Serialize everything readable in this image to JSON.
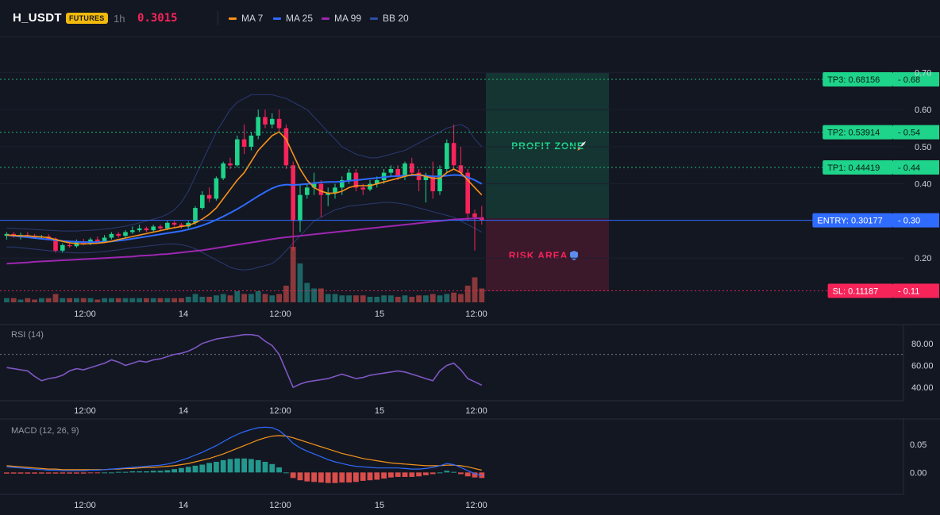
{
  "header": {
    "symbol": "H_USDT",
    "badge": "FUTURES",
    "timeframe": "1h",
    "last_price": "0.3015",
    "legend": [
      {
        "label": "MA 7",
        "color": "#f7931a"
      },
      {
        "label": "MA 25",
        "color": "#2f6bff"
      },
      {
        "label": "MA 99",
        "color": "#9c27b0"
      },
      {
        "label": "BB 20",
        "color": "#1e3a8a"
      }
    ]
  },
  "colors": {
    "up": "#1ed38a",
    "down": "#f7245a",
    "up_muted": "#26a69a",
    "down_muted": "#ef5350",
    "ma7": "#f7931a",
    "ma25": "#2f6bff",
    "ma99": "#9c27b0",
    "bb": "#2b3a72",
    "rsi": "#7e57c2",
    "macd": "#2f6bff",
    "signal": "#f7931a",
    "tp": "#1ed38a",
    "entry": "#2f6bff",
    "sl": "#f7245a"
  },
  "price_axis": {
    "ticks": [
      "0.70",
      "0.60",
      "0.50",
      "0.40",
      "0.20"
    ],
    "ylim": [
      0.1,
      0.72
    ]
  },
  "time_axis": {
    "ticks": [
      "12:00",
      "14",
      "12:00",
      "15",
      "12:00"
    ]
  },
  "levels": [
    {
      "label": "TP3: 0.68156",
      "short": "0.68",
      "value": 0.68156,
      "kind": "tp"
    },
    {
      "label": "TP2: 0.53914",
      "short": "0.54",
      "value": 0.53914,
      "kind": "tp"
    },
    {
      "label": "TP1: 0.44419",
      "short": "0.44",
      "value": 0.44419,
      "kind": "tp"
    },
    {
      "label": "ENTRY: 0.30177",
      "short": "0.30",
      "value": 0.30177,
      "kind": "entry"
    },
    {
      "label": "SL: 0.11187",
      "short": "0.11",
      "value": 0.11187,
      "kind": "sl"
    }
  ],
  "zones": {
    "profit_label": "PROFIT ZONE",
    "profit_icon": "rocket-icon",
    "risk_label": "RISK AREA",
    "risk_icon": "shield-icon"
  },
  "rsi": {
    "title": "RSI (14)",
    "ticks": [
      "80.00",
      "60.00",
      "40.00"
    ],
    "ylim": [
      30,
      95
    ],
    "overbought": 70
  },
  "macd": {
    "title": "MACD (12, 26, 9)",
    "ticks": [
      "0.05",
      "0.00"
    ],
    "ylim": [
      -0.035,
      0.09
    ]
  },
  "chart_data": {
    "type": "candlestick",
    "title": "H_USDT",
    "candles": [
      [
        0.26,
        0.27,
        0.25,
        0.265
      ],
      [
        0.265,
        0.27,
        0.255,
        0.258
      ],
      [
        0.258,
        0.268,
        0.25,
        0.262
      ],
      [
        0.262,
        0.27,
        0.255,
        0.26
      ],
      [
        0.26,
        0.265,
        0.252,
        0.255
      ],
      [
        0.255,
        0.262,
        0.25,
        0.258
      ],
      [
        0.258,
        0.264,
        0.25,
        0.252
      ],
      [
        0.252,
        0.256,
        0.215,
        0.22
      ],
      [
        0.22,
        0.24,
        0.215,
        0.235
      ],
      [
        0.235,
        0.245,
        0.228,
        0.232
      ],
      [
        0.232,
        0.25,
        0.228,
        0.245
      ],
      [
        0.245,
        0.252,
        0.235,
        0.24
      ],
      [
        0.24,
        0.255,
        0.235,
        0.25
      ],
      [
        0.25,
        0.258,
        0.242,
        0.245
      ],
      [
        0.245,
        0.262,
        0.24,
        0.255
      ],
      [
        0.255,
        0.27,
        0.25,
        0.265
      ],
      [
        0.265,
        0.27,
        0.255,
        0.26
      ],
      [
        0.26,
        0.275,
        0.255,
        0.27
      ],
      [
        0.27,
        0.285,
        0.265,
        0.275
      ],
      [
        0.275,
        0.29,
        0.27,
        0.28
      ],
      [
        0.28,
        0.285,
        0.27,
        0.275
      ],
      [
        0.275,
        0.29,
        0.27,
        0.285
      ],
      [
        0.285,
        0.29,
        0.275,
        0.28
      ],
      [
        0.28,
        0.3,
        0.275,
        0.295
      ],
      [
        0.295,
        0.3,
        0.285,
        0.29
      ],
      [
        0.29,
        0.295,
        0.28,
        0.285
      ],
      [
        0.285,
        0.3,
        0.28,
        0.295
      ],
      [
        0.295,
        0.34,
        0.29,
        0.335
      ],
      [
        0.335,
        0.38,
        0.33,
        0.37
      ],
      [
        0.37,
        0.39,
        0.35,
        0.36
      ],
      [
        0.36,
        0.42,
        0.355,
        0.415
      ],
      [
        0.415,
        0.46,
        0.41,
        0.455
      ],
      [
        0.455,
        0.47,
        0.44,
        0.45
      ],
      [
        0.45,
        0.53,
        0.445,
        0.52
      ],
      [
        0.52,
        0.56,
        0.48,
        0.5
      ],
      [
        0.5,
        0.54,
        0.49,
        0.53
      ],
      [
        0.53,
        0.6,
        0.52,
        0.58
      ],
      [
        0.58,
        0.6,
        0.55,
        0.56
      ],
      [
        0.56,
        0.59,
        0.55,
        0.575
      ],
      [
        0.575,
        0.6,
        0.54,
        0.55
      ],
      [
        0.55,
        0.56,
        0.44,
        0.45
      ],
      [
        0.45,
        0.46,
        0.22,
        0.3
      ],
      [
        0.3,
        0.4,
        0.27,
        0.37
      ],
      [
        0.37,
        0.4,
        0.36,
        0.39
      ],
      [
        0.39,
        0.43,
        0.37,
        0.4
      ],
      [
        0.4,
        0.41,
        0.31,
        0.37
      ],
      [
        0.37,
        0.39,
        0.34,
        0.375
      ],
      [
        0.375,
        0.4,
        0.36,
        0.39
      ],
      [
        0.39,
        0.42,
        0.37,
        0.41
      ],
      [
        0.41,
        0.44,
        0.4,
        0.43
      ],
      [
        0.43,
        0.44,
        0.38,
        0.39
      ],
      [
        0.39,
        0.4,
        0.37,
        0.385
      ],
      [
        0.385,
        0.41,
        0.38,
        0.4
      ],
      [
        0.4,
        0.42,
        0.39,
        0.41
      ],
      [
        0.41,
        0.44,
        0.4,
        0.43
      ],
      [
        0.43,
        0.45,
        0.42,
        0.44
      ],
      [
        0.44,
        0.45,
        0.41,
        0.42
      ],
      [
        0.42,
        0.46,
        0.41,
        0.455
      ],
      [
        0.455,
        0.47,
        0.42,
        0.43
      ],
      [
        0.43,
        0.44,
        0.38,
        0.41
      ],
      [
        0.41,
        0.43,
        0.35,
        0.42
      ],
      [
        0.42,
        0.46,
        0.36,
        0.38
      ],
      [
        0.38,
        0.45,
        0.37,
        0.44
      ],
      [
        0.44,
        0.52,
        0.43,
        0.51
      ],
      [
        0.51,
        0.56,
        0.44,
        0.45
      ],
      [
        0.45,
        0.5,
        0.42,
        0.43
      ],
      [
        0.43,
        0.44,
        0.3,
        0.32
      ],
      [
        0.32,
        0.33,
        0.22,
        0.31
      ],
      [
        0.31,
        0.34,
        0.29,
        0.3015
      ]
    ],
    "volume": [
      3,
      3,
      2,
      3,
      2,
      3,
      3,
      6,
      3,
      3,
      3,
      3,
      3,
      2,
      3,
      3,
      3,
      3,
      3,
      3,
      3,
      3,
      3,
      3,
      3,
      3,
      4,
      6,
      4,
      4,
      5,
      6,
      5,
      8,
      6,
      6,
      8,
      6,
      5,
      6,
      12,
      40,
      28,
      14,
      10,
      10,
      6,
      6,
      5,
      5,
      5,
      5,
      4,
      4,
      5,
      5,
      4,
      5,
      4,
      5,
      5,
      6,
      5,
      6,
      7,
      6,
      12,
      18,
      10
    ],
    "ma7": [
      0.262,
      0.261,
      0.26,
      0.26,
      0.258,
      0.257,
      0.255,
      0.25,
      0.245,
      0.241,
      0.239,
      0.238,
      0.239,
      0.24,
      0.242,
      0.245,
      0.25,
      0.254,
      0.258,
      0.262,
      0.266,
      0.27,
      0.274,
      0.278,
      0.282,
      0.285,
      0.288,
      0.295,
      0.305,
      0.318,
      0.335,
      0.36,
      0.385,
      0.41,
      0.43,
      0.46,
      0.49,
      0.51,
      0.53,
      0.54,
      0.52,
      0.48,
      0.44,
      0.41,
      0.39,
      0.38,
      0.375,
      0.375,
      0.38,
      0.39,
      0.395,
      0.395,
      0.395,
      0.4,
      0.405,
      0.41,
      0.415,
      0.42,
      0.425,
      0.425,
      0.42,
      0.415,
      0.415,
      0.43,
      0.44,
      0.43,
      0.41,
      0.39,
      0.37
    ],
    "ma25": [
      0.262,
      0.26,
      0.258,
      0.256,
      0.254,
      0.252,
      0.25,
      0.248,
      0.246,
      0.245,
      0.244,
      0.243,
      0.243,
      0.243,
      0.244,
      0.245,
      0.247,
      0.249,
      0.252,
      0.255,
      0.258,
      0.261,
      0.264,
      0.267,
      0.27,
      0.273,
      0.277,
      0.282,
      0.288,
      0.295,
      0.303,
      0.312,
      0.322,
      0.332,
      0.343,
      0.355,
      0.367,
      0.378,
      0.388,
      0.395,
      0.398,
      0.397,
      0.398,
      0.4,
      0.402,
      0.404,
      0.405,
      0.405,
      0.406,
      0.408,
      0.41,
      0.412,
      0.414,
      0.416,
      0.418,
      0.42,
      0.421,
      0.422,
      0.423,
      0.423,
      0.422,
      0.42,
      0.42,
      0.422,
      0.424,
      0.423,
      0.418,
      0.41,
      0.4
    ],
    "ma99": [
      0.185,
      0.186,
      0.187,
      0.188,
      0.19,
      0.191,
      0.192,
      0.193,
      0.194,
      0.195,
      0.196,
      0.197,
      0.198,
      0.199,
      0.2,
      0.201,
      0.202,
      0.203,
      0.204,
      0.206,
      0.207,
      0.208,
      0.21,
      0.211,
      0.213,
      0.215,
      0.217,
      0.219,
      0.221,
      0.224,
      0.227,
      0.23,
      0.233,
      0.236,
      0.239,
      0.242,
      0.245,
      0.248,
      0.251,
      0.254,
      0.256,
      0.258,
      0.26,
      0.262,
      0.264,
      0.266,
      0.268,
      0.27,
      0.272,
      0.274,
      0.276,
      0.278,
      0.28,
      0.282,
      0.284,
      0.286,
      0.288,
      0.29,
      0.292,
      0.294,
      0.296,
      0.298,
      0.3,
      0.302,
      0.304,
      0.305,
      0.306,
      0.307,
      0.308
    ],
    "bb_upper": [
      0.28,
      0.28,
      0.279,
      0.278,
      0.277,
      0.276,
      0.275,
      0.274,
      0.273,
      0.273,
      0.273,
      0.274,
      0.275,
      0.276,
      0.278,
      0.28,
      0.283,
      0.286,
      0.29,
      0.295,
      0.3,
      0.305,
      0.31,
      0.318,
      0.33,
      0.35,
      0.38,
      0.42,
      0.46,
      0.5,
      0.54,
      0.57,
      0.6,
      0.62,
      0.63,
      0.64,
      0.64,
      0.64,
      0.64,
      0.635,
      0.63,
      0.62,
      0.61,
      0.6,
      0.58,
      0.56,
      0.54,
      0.52,
      0.5,
      0.49,
      0.48,
      0.475,
      0.47,
      0.47,
      0.475,
      0.48,
      0.485,
      0.49,
      0.5,
      0.51,
      0.52,
      0.53,
      0.54,
      0.55,
      0.555,
      0.56,
      0.55,
      0.52,
      0.5
    ],
    "bb_lower": [
      0.23,
      0.23,
      0.228,
      0.226,
      0.224,
      0.222,
      0.22,
      0.218,
      0.216,
      0.215,
      0.214,
      0.214,
      0.215,
      0.216,
      0.218,
      0.22,
      0.222,
      0.225,
      0.228,
      0.23,
      0.232,
      0.234,
      0.236,
      0.238,
      0.238,
      0.236,
      0.232,
      0.225,
      0.215,
      0.205,
      0.195,
      0.185,
      0.175,
      0.17,
      0.168,
      0.17,
      0.175,
      0.18,
      0.185,
      0.2,
      0.22,
      0.24,
      0.26,
      0.28,
      0.3,
      0.31,
      0.32,
      0.33,
      0.335,
      0.34,
      0.342,
      0.344,
      0.346,
      0.348,
      0.35,
      0.35,
      0.348,
      0.345,
      0.34,
      0.335,
      0.33,
      0.325,
      0.32,
      0.315,
      0.31,
      0.3,
      0.29,
      0.28,
      0.27
    ],
    "rsi": [
      58,
      57,
      56,
      55,
      50,
      46,
      48,
      49,
      51,
      55,
      57,
      56,
      58,
      60,
      62,
      65,
      63,
      60,
      62,
      64,
      63,
      65,
      66,
      68,
      70,
      71,
      73,
      76,
      80,
      82,
      84,
      85,
      86,
      87,
      88,
      88,
      87,
      82,
      78,
      70,
      55,
      40,
      43,
      45,
      46,
      47,
      48,
      50,
      52,
      50,
      48,
      49,
      51,
      52,
      53,
      54,
      55,
      54,
      52,
      50,
      48,
      46,
      55,
      60,
      62,
      56,
      48,
      45,
      42
    ],
    "macd": [
      0.01,
      0.009,
      0.008,
      0.007,
      0.006,
      0.005,
      0.004,
      0.004,
      0.003,
      0.003,
      0.003,
      0.003,
      0.004,
      0.004,
      0.005,
      0.006,
      0.007,
      0.008,
      0.009,
      0.01,
      0.011,
      0.012,
      0.013,
      0.015,
      0.018,
      0.022,
      0.026,
      0.031,
      0.036,
      0.042,
      0.048,
      0.055,
      0.062,
      0.068,
      0.073,
      0.077,
      0.08,
      0.081,
      0.08,
      0.075,
      0.065,
      0.052,
      0.044,
      0.038,
      0.033,
      0.028,
      0.023,
      0.019,
      0.016,
      0.013,
      0.011,
      0.01,
      0.009,
      0.008,
      0.008,
      0.008,
      0.008,
      0.007,
      0.006,
      0.006,
      0.007,
      0.009,
      0.012,
      0.016,
      0.014,
      0.009,
      0.003,
      -0.002,
      -0.006
    ],
    "signal": [
      0.012,
      0.011,
      0.01,
      0.009,
      0.008,
      0.007,
      0.006,
      0.006,
      0.005,
      0.005,
      0.005,
      0.005,
      0.005,
      0.005,
      0.005,
      0.006,
      0.006,
      0.007,
      0.007,
      0.008,
      0.009,
      0.009,
      0.01,
      0.011,
      0.012,
      0.014,
      0.016,
      0.019,
      0.022,
      0.025,
      0.029,
      0.033,
      0.038,
      0.043,
      0.048,
      0.053,
      0.058,
      0.062,
      0.065,
      0.066,
      0.065,
      0.062,
      0.058,
      0.054,
      0.05,
      0.046,
      0.042,
      0.038,
      0.034,
      0.031,
      0.028,
      0.025,
      0.023,
      0.021,
      0.019,
      0.017,
      0.016,
      0.015,
      0.014,
      0.013,
      0.012,
      0.012,
      0.012,
      0.013,
      0.013,
      0.012,
      0.01,
      0.007,
      0.004
    ]
  }
}
